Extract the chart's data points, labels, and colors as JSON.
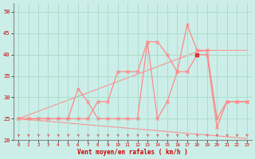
{
  "xlabel": "Vent moyen/en rafales ( km/h )",
  "xlim": [
    -0.5,
    23.5
  ],
  "ylim": [
    20,
    52
  ],
  "yticks": [
    20,
    25,
    30,
    35,
    40,
    45,
    50
  ],
  "xticks": [
    0,
    1,
    2,
    3,
    4,
    5,
    6,
    7,
    8,
    9,
    10,
    11,
    12,
    13,
    14,
    15,
    16,
    17,
    18,
    19,
    20,
    21,
    22,
    23
  ],
  "bg_color": "#cceee8",
  "grid_color": "#aaddcc",
  "line_color": "#ff8888",
  "line_color_dark": "#dd3333",
  "series_moyen": [
    25,
    25,
    25,
    25,
    25,
    25,
    25,
    25,
    29,
    29,
    36,
    36,
    36,
    43,
    43,
    40,
    36,
    36,
    40,
    40,
    23,
    29,
    29,
    29
  ],
  "series_rafales": [
    25,
    25,
    25,
    25,
    25,
    25,
    32,
    29,
    25,
    25,
    25,
    25,
    25,
    43,
    25,
    29,
    36,
    47,
    41,
    41,
    25,
    29,
    29,
    29
  ],
  "series_trend_up": [
    25.0,
    25.87,
    26.74,
    27.61,
    28.48,
    29.35,
    30.22,
    31.09,
    31.96,
    32.83,
    33.7,
    34.57,
    35.44,
    36.31,
    37.18,
    38.05,
    38.92,
    39.79,
    40.66,
    41.0,
    41.0,
    41.0,
    41.0,
    41.0
  ],
  "series_trend_dn": [
    25.0,
    24.8,
    24.6,
    24.4,
    24.2,
    24.0,
    23.8,
    23.6,
    23.4,
    23.2,
    23.0,
    22.8,
    22.6,
    22.4,
    22.2,
    22.0,
    21.8,
    21.6,
    21.4,
    21.2,
    21.0,
    20.8,
    20.6,
    20.4
  ],
  "highlight_x": 18,
  "highlight_y": 40
}
